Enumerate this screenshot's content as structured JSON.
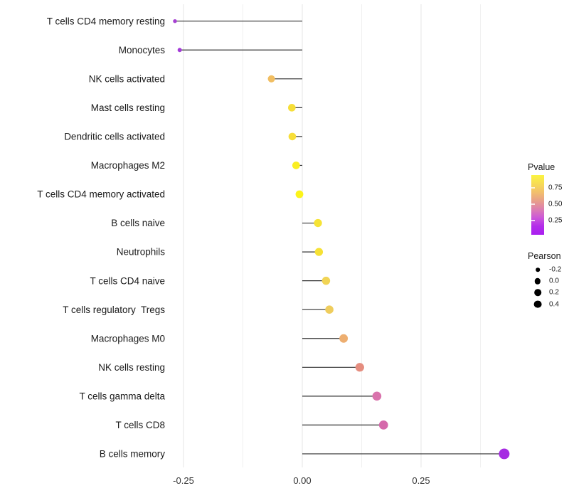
{
  "chart_data": {
    "type": "scatter",
    "variant": "lollipop",
    "orientation": "horizontal",
    "title": "",
    "xlabel": "",
    "ylabel": "",
    "grid": true,
    "background": "#ffffff",
    "categories": [
      "T cells CD4 memory resting",
      "Monocytes",
      "NK cells activated",
      "Mast cells resting",
      "Dendritic cells activated",
      "Macrophages M2",
      "T cells CD4 memory activated",
      "B cells naive",
      "Neutrophils",
      "T cells CD4 naive",
      "T cells regulatory  Tregs",
      "Macrophages M0",
      "NK cells resting",
      "T cells gamma delta",
      "T cells CD8",
      "B cells memory"
    ],
    "series": [
      {
        "name": "Pearson",
        "values": [
          -0.268,
          -0.258,
          -0.065,
          -0.022,
          -0.021,
          -0.013,
          -0.006,
          0.033,
          0.035,
          0.05,
          0.057,
          0.087,
          0.121,
          0.157,
          0.171,
          0.425
        ],
        "pvalue_estimated": [
          0.1,
          0.12,
          0.67,
          0.8,
          0.8,
          0.9,
          0.95,
          0.85,
          0.85,
          0.78,
          0.75,
          0.62,
          0.48,
          0.35,
          0.32,
          0.05
        ],
        "point_colors": [
          "#A640D2",
          "#A43BD8",
          "#F1BE62",
          "#F6DE38",
          "#F7DE39",
          "#FAEE21",
          "#FCF41A",
          "#F6E335",
          "#F6E135",
          "#F1D455",
          "#EFCD5D",
          "#EDAE70",
          "#E58D7F",
          "#D973AC",
          "#D569AB",
          "#A62BE2"
        ]
      }
    ],
    "x_axis": {
      "tick_labels": [
        "-0.25",
        "0.00",
        "0.25"
      ],
      "tick_values": [
        -0.25,
        0.0,
        0.25
      ],
      "minor_grid_values": [
        -0.125,
        0.125,
        0.375
      ],
      "xlim": [
        -0.28,
        0.438
      ]
    },
    "stem_color": "#303030",
    "grid_major_color": "#e4e4e4",
    "grid_minor_color": "#f0f0f0",
    "legends": {
      "pvalue": {
        "title": "Pvalue",
        "tick_labels": [
          "0.75",
          "0.50",
          "0.25"
        ],
        "tick_values": [
          0.75,
          0.5,
          0.25
        ],
        "gradient_top_to_bottom": [
          "#FBF440",
          "#F7DC55",
          "#F2C06C",
          "#E8A089",
          "#DD7FB0",
          "#CC58D8",
          "#B32CEA",
          "#A91EF0"
        ]
      },
      "pearson": {
        "title": "Pearson",
        "entry_labels": [
          "-0.2",
          "0.0",
          "0.2",
          "0.4"
        ],
        "entry_values": [
          -0.2,
          0.0,
          0.2,
          0.4
        ],
        "entry_color": "#000000"
      }
    }
  }
}
